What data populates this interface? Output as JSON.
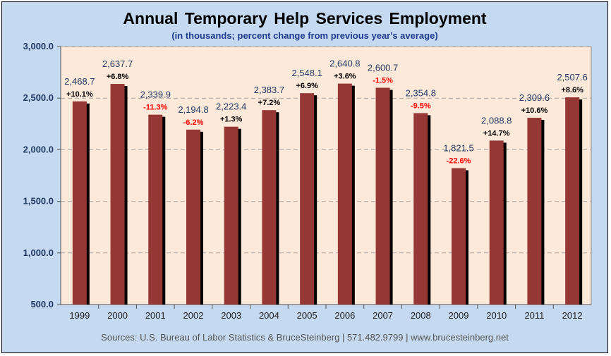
{
  "title": "Annual Temporary Help Services Employment",
  "subtitle": "(in thousands;  percent change from previous year's average)",
  "source": "Sources: U.S. Bureau of Labor Statistics & BruceSteinberg | 571.482.9799 | www.brucesteinberg.net",
  "colors": {
    "background": "#c5d9f1",
    "plot_area": "#fde9d9",
    "bar": "#953735",
    "bar_shadow": "#000000",
    "positive_change": "#000000",
    "negative_change": "#ff0000",
    "value_label": "#1f3b63"
  },
  "chart_data": {
    "type": "bar",
    "categories": [
      "1999",
      "2000",
      "2001",
      "2002",
      "2003",
      "2004",
      "2005",
      "2006",
      "2007",
      "2008",
      "2009",
      "2010",
      "2011",
      "2012"
    ],
    "values": [
      2468.7,
      2637.7,
      2339.9,
      2194.8,
      2223.4,
      2383.7,
      2548.1,
      2640.8,
      2600.7,
      2354.8,
      1821.5,
      2088.8,
      2309.6,
      2507.6
    ],
    "value_labels": [
      "2,468.7",
      "2,637.7",
      "2,339.9",
      "2,194.8",
      "2,223.4",
      "2,383.7",
      "2,548.1",
      "2,640.8",
      "2,600.7",
      "2,354.8",
      "1,821.5",
      "2,088.8",
      "2,309.6",
      "2,507.6"
    ],
    "pct_change": [
      "+10.1%",
      "+6.8%",
      "-11.3%",
      "-6.2%",
      "+1.3%",
      "+7.2%",
      "+6.9%",
      "+3.6%",
      "-1.5%",
      "-9.5%",
      "-22.6%",
      "+14.7%",
      "+10.6%",
      "+8.6%"
    ],
    "yticks": [
      "500.0",
      "1,000.0",
      "1,500.0",
      "2,000.0",
      "2,500.0",
      "3,000.0"
    ],
    "ytick_values": [
      500,
      1000,
      1500,
      2000,
      2500,
      3000
    ],
    "ylim": [
      500,
      3000
    ],
    "grid": "horizontal dashed"
  }
}
